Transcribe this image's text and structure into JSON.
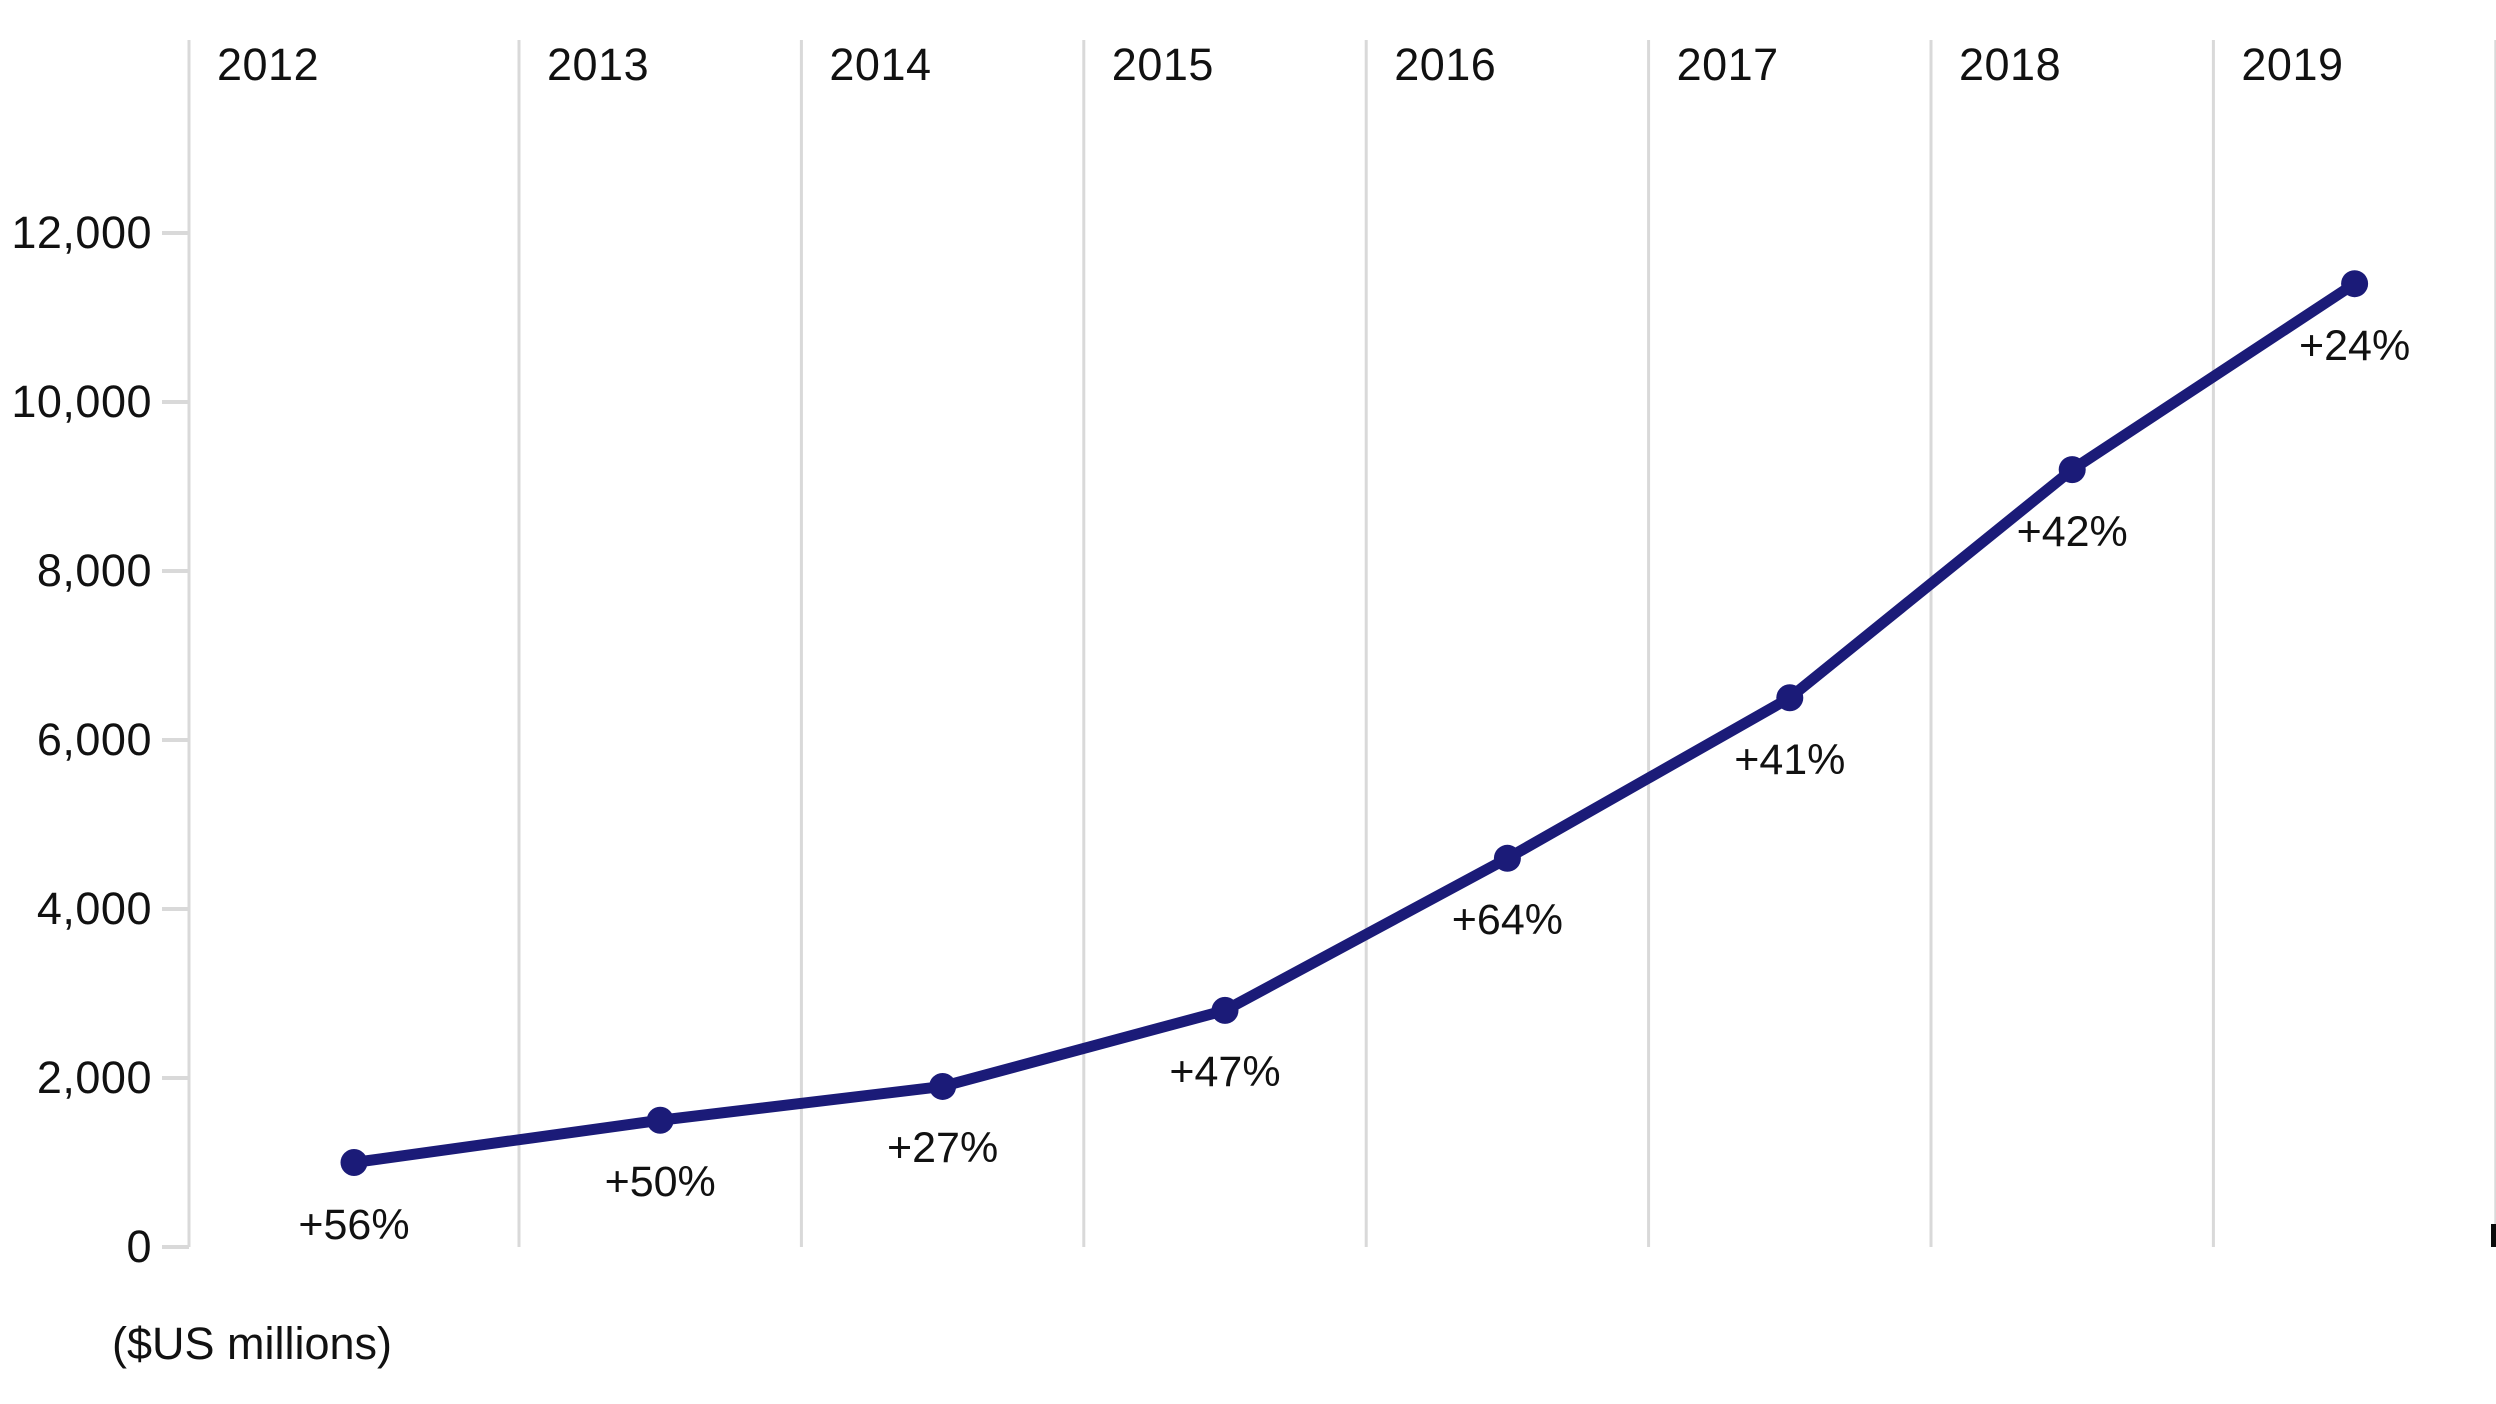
{
  "chart_data": {
    "type": "line",
    "title": "",
    "unit_label": "($US millions)",
    "categories": [
      "2012",
      "2013",
      "2014",
      "2015",
      "2016",
      "2017",
      "2018",
      "2019"
    ],
    "values": [
      1000,
      1500,
      1900,
      2800,
      4600,
      6500,
      9200,
      11400
    ],
    "point_labels": [
      "+56%",
      "+50%",
      "+27%",
      "+47%",
      "+64%",
      "+41%",
      "+42%",
      "+24%"
    ],
    "xlabel": "",
    "ylabel": "($US millions)",
    "ylim": [
      0,
      12000
    ],
    "ytick_values": [
      0,
      2000,
      4000,
      6000,
      8000,
      10000,
      12000
    ],
    "ytick_labels": [
      "0",
      "2,000",
      "4,000",
      "6,000",
      "8,000",
      "10,000",
      "12,000"
    ],
    "grid": "vertical-only",
    "legend": "none",
    "colors": {
      "line": "#1b1b78",
      "marker": "#1b1b78",
      "gridline": "#d9d9d9",
      "text": "#111111",
      "background": "#ffffff"
    }
  }
}
